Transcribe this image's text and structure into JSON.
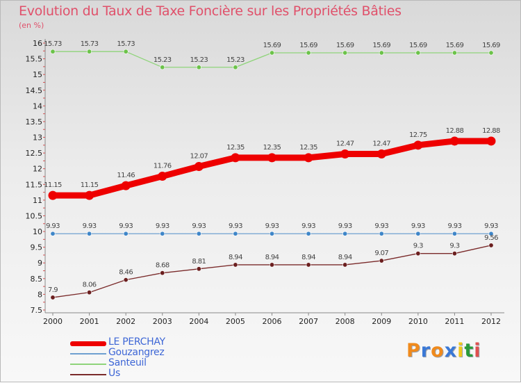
{
  "title": "Evolution du Taux de Taxe Foncière sur les Propriétés Bâties",
  "unit_label": "(en %)",
  "logo": {
    "text": "Proxiti",
    "letter_colors": [
      "#f08a1c",
      "#3a78d6",
      "#f08a1c",
      "#3a78d6",
      "#f0c81c",
      "#2a9a3a",
      "#e05050"
    ]
  },
  "chart_data": {
    "type": "line",
    "title": "Evolution du Taux de Taxe Foncière sur les Propriétés Bâties",
    "ylabel": "(en %)",
    "xlabel": "",
    "ylim": [
      7.5,
      16
    ],
    "yticks": [
      7.5,
      8,
      8.5,
      9,
      9.5,
      10,
      10.5,
      11,
      11.5,
      12,
      12.5,
      13,
      13.5,
      14,
      14.5,
      15,
      15.5,
      16
    ],
    "categories": [
      "2000",
      "2001",
      "2002",
      "2003",
      "2004",
      "2005",
      "2006",
      "2007",
      "2008",
      "2009",
      "2010",
      "2011",
      "2012"
    ],
    "series": [
      {
        "name": "LE PERCHAY",
        "color": "#ee0000",
        "emphasis": true,
        "values": [
          11.15,
          11.15,
          11.46,
          11.76,
          12.07,
          12.35,
          12.35,
          12.35,
          12.47,
          12.47,
          12.75,
          12.88,
          12.88
        ],
        "labels": [
          "11.15",
          "11.15",
          "11.46",
          "11.76",
          "12.07",
          "12.35",
          "12.35",
          "12.35",
          "12.47",
          "12.47",
          "12.75",
          "12.88",
          "12.88"
        ]
      },
      {
        "name": "Gouzangrez",
        "color": "#6fa0d0",
        "marker": "#3f86c8",
        "values": [
          9.93,
          9.93,
          9.93,
          9.93,
          9.93,
          9.93,
          9.93,
          9.93,
          9.93,
          9.93,
          9.93,
          9.93,
          9.93
        ],
        "labels": [
          "9.93",
          "9.93",
          "9.93",
          "9.93",
          "9.93",
          "9.93",
          "9.93",
          "9.93",
          "9.93",
          "9.93",
          "9.93",
          "9.93",
          "9.93"
        ]
      },
      {
        "name": "Santeuil",
        "color": "#8fd47a",
        "marker": "#6cc24a",
        "values": [
          15.73,
          15.73,
          15.73,
          15.23,
          15.23,
          15.23,
          15.69,
          15.69,
          15.69,
          15.69,
          15.69,
          15.69,
          15.69
        ],
        "labels": [
          "15.73",
          "15.73",
          "15.73",
          "15.23",
          "15.23",
          "15.23",
          "15.69",
          "15.69",
          "15.69",
          "15.69",
          "15.69",
          "15.69",
          "15.69"
        ]
      },
      {
        "name": "Us",
        "color": "#7a2a2a",
        "marker": "#6b1f1f",
        "values": [
          7.9,
          8.06,
          8.46,
          8.68,
          8.81,
          8.94,
          8.94,
          8.94,
          8.94,
          9.07,
          9.3,
          9.3,
          9.56
        ],
        "labels": [
          "7.9",
          "8.06",
          "8.46",
          "8.68",
          "8.81",
          "8.94",
          "8.94",
          "8.94",
          "8.94",
          "9.07",
          "9.3",
          "9.3",
          "9.56"
        ]
      }
    ],
    "legend_position": "bottom-left",
    "grid": false
  }
}
